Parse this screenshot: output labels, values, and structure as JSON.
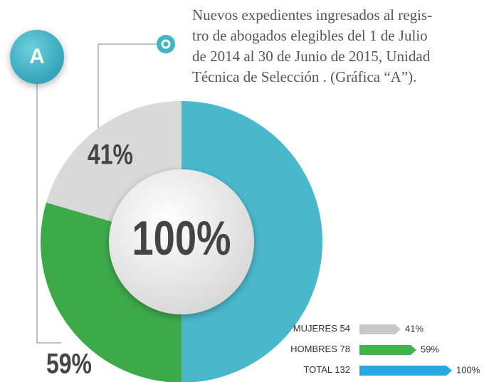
{
  "chart_data": {
    "type": "donut",
    "title": [
      "Nuevos expedientes ingresados al regis-",
      "tro de abogados elegibles del 1 de Julio",
      "de 2014 al 30 de Junio de 2015, Unidad",
      "Técnica de Selección . (Gráfica “A”)."
    ],
    "badge": "A",
    "categories": [
      "MUJERES",
      "HOMBRES",
      "TOTAL"
    ],
    "counts": [
      54,
      78,
      132
    ],
    "values": [
      41,
      59,
      100
    ],
    "value_labels": [
      "41%",
      "59%",
      "100%"
    ],
    "colors": [
      "#d9d9d9",
      "#3daa4a",
      "#4ab8cc"
    ],
    "legend_colors": [
      "#c8c8c8",
      "#3db54a",
      "#27a8e0"
    ]
  }
}
